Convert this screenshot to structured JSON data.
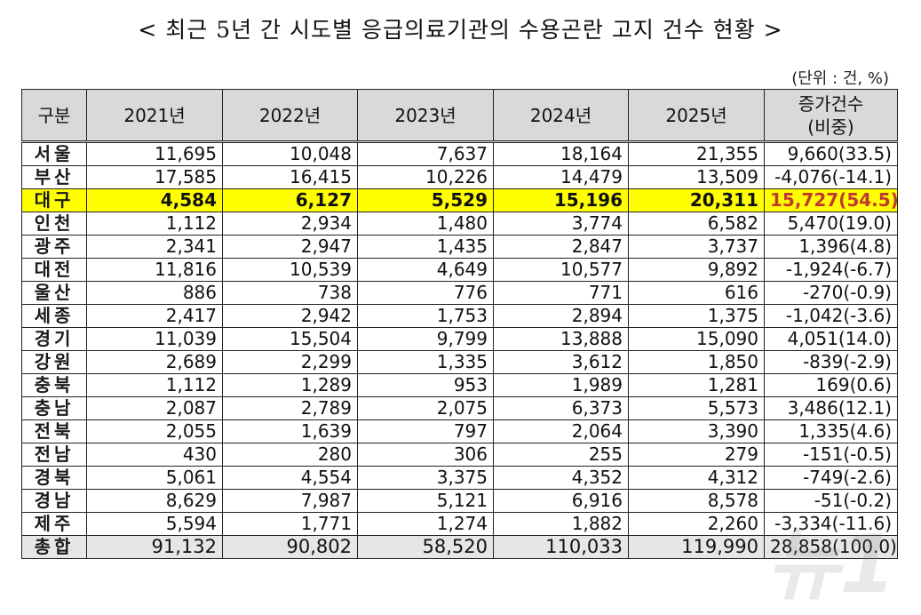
{
  "title": "< 최근 5년 간 시도별 응급의료기관의 수용곤란 고지 건수 현황 >",
  "unit": "(단위 : 건, %)",
  "columns": [
    "구분",
    "2021년",
    "2022년",
    "2023년",
    "2024년",
    "2025년",
    "증가건수",
    "(비중)"
  ],
  "rows": [
    {
      "region": "서울",
      "y2021": "11,695",
      "y2022": "10,048",
      "y2023": "7,637",
      "y2024": "18,164",
      "y2025": "21,355",
      "change": "9,660(33.5)"
    },
    {
      "region": "부산",
      "y2021": "17,585",
      "y2022": "16,415",
      "y2023": "10,226",
      "y2024": "14,479",
      "y2025": "13,509",
      "change": "-4,076(-14.1)"
    },
    {
      "region": "대구",
      "y2021": "4,584",
      "y2022": "6,127",
      "y2023": "5,529",
      "y2024": "15,196",
      "y2025": "20,311",
      "change": "15,727(54.5)"
    },
    {
      "region": "인천",
      "y2021": "1,112",
      "y2022": "2,934",
      "y2023": "1,480",
      "y2024": "3,774",
      "y2025": "6,582",
      "change": "5,470(19.0)"
    },
    {
      "region": "광주",
      "y2021": "2,341",
      "y2022": "2,947",
      "y2023": "1,435",
      "y2024": "2,847",
      "y2025": "3,737",
      "change": "1,396(4.8)"
    },
    {
      "region": "대전",
      "y2021": "11,816",
      "y2022": "10,539",
      "y2023": "4,649",
      "y2024": "10,577",
      "y2025": "9,892",
      "change": "-1,924(-6.7)"
    },
    {
      "region": "울산",
      "y2021": "886",
      "y2022": "738",
      "y2023": "776",
      "y2024": "771",
      "y2025": "616",
      "change": "-270(-0.9)"
    },
    {
      "region": "세종",
      "y2021": "2,417",
      "y2022": "2,942",
      "y2023": "1,753",
      "y2024": "2,894",
      "y2025": "1,375",
      "change": "-1,042(-3.6)"
    },
    {
      "region": "경기",
      "y2021": "11,039",
      "y2022": "15,504",
      "y2023": "9,799",
      "y2024": "13,888",
      "y2025": "15,090",
      "change": "4,051(14.0)"
    },
    {
      "region": "강원",
      "y2021": "2,689",
      "y2022": "2,299",
      "y2023": "1,335",
      "y2024": "3,612",
      "y2025": "1,850",
      "change": "-839(-2.9)"
    },
    {
      "region": "충북",
      "y2021": "1,112",
      "y2022": "1,289",
      "y2023": "953",
      "y2024": "1,989",
      "y2025": "1,281",
      "change": "169(0.6)"
    },
    {
      "region": "충남",
      "y2021": "2,087",
      "y2022": "2,789",
      "y2023": "2,075",
      "y2024": "6,373",
      "y2025": "5,573",
      "change": "3,486(12.1)"
    },
    {
      "region": "전북",
      "y2021": "2,055",
      "y2022": "1,639",
      "y2023": "797",
      "y2024": "2,064",
      "y2025": "3,390",
      "change": "1,335(4.6)"
    },
    {
      "region": "전남",
      "y2021": "430",
      "y2022": "280",
      "y2023": "306",
      "y2024": "255",
      "y2025": "279",
      "change": "-151(-0.5)"
    },
    {
      "region": "경북",
      "y2021": "5,061",
      "y2022": "4,554",
      "y2023": "3,375",
      "y2024": "4,352",
      "y2025": "4,312",
      "change": "-749(-2.6)"
    },
    {
      "region": "경남",
      "y2021": "8,629",
      "y2022": "7,987",
      "y2023": "5,121",
      "y2024": "6,916",
      "y2025": "8,578",
      "change": "-51(-0.2)"
    },
    {
      "region": "제주",
      "y2021": "5,594",
      "y2022": "1,771",
      "y2023": "1,274",
      "y2024": "1,882",
      "y2025": "2,260",
      "change": "-3,334(-11.6)"
    },
    {
      "region": "총합",
      "y2021": "91,132",
      "y2022": "90,802",
      "y2023": "58,520",
      "y2024": "110,033",
      "y2025": "119,990",
      "change": "28,858(100.0)"
    }
  ],
  "colors": {
    "header_bg": "#d9d9d9",
    "highlight_bg": "#ffff00",
    "highlight_change_text": "#c0392b",
    "total_bg": "#e6e6e6"
  }
}
